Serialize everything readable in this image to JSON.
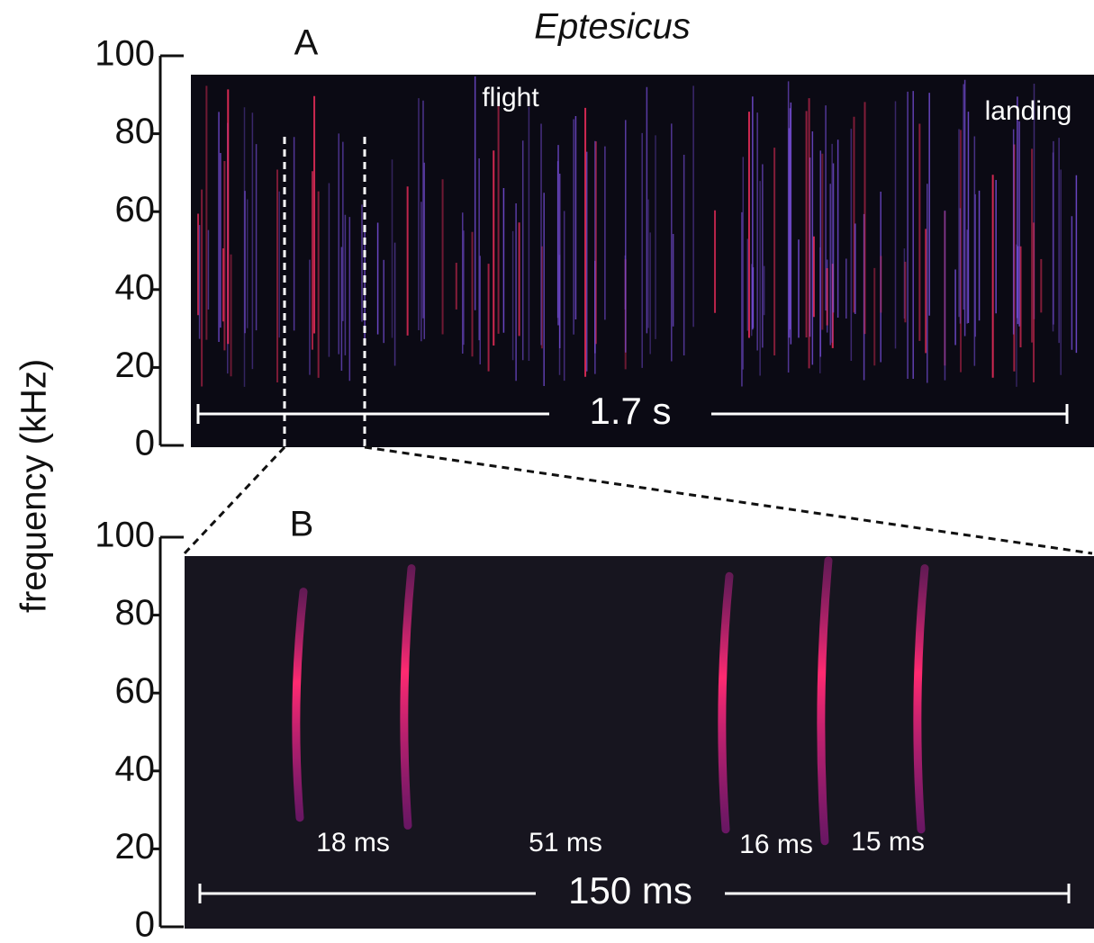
{
  "chart_data": [
    {
      "type": "spectrogram",
      "title": "Eptesicus",
      "panel_label": "A",
      "y_label": "frequency (kHz)",
      "ylim": [
        0,
        100
      ],
      "yticks": [
        0,
        20,
        40,
        60,
        80,
        100
      ],
      "annotations": [
        "flight",
        "landing"
      ],
      "scale_bar": "1.7 s"
    },
    {
      "type": "spectrogram",
      "panel_label": "B",
      "ylim": [
        0,
        100
      ],
      "yticks": [
        0,
        20,
        40,
        60,
        80,
        100
      ],
      "annotations": [
        "18 ms",
        "51 ms",
        "16 ms",
        "15 ms"
      ],
      "scale_bar": "150 ms"
    }
  ]
}
